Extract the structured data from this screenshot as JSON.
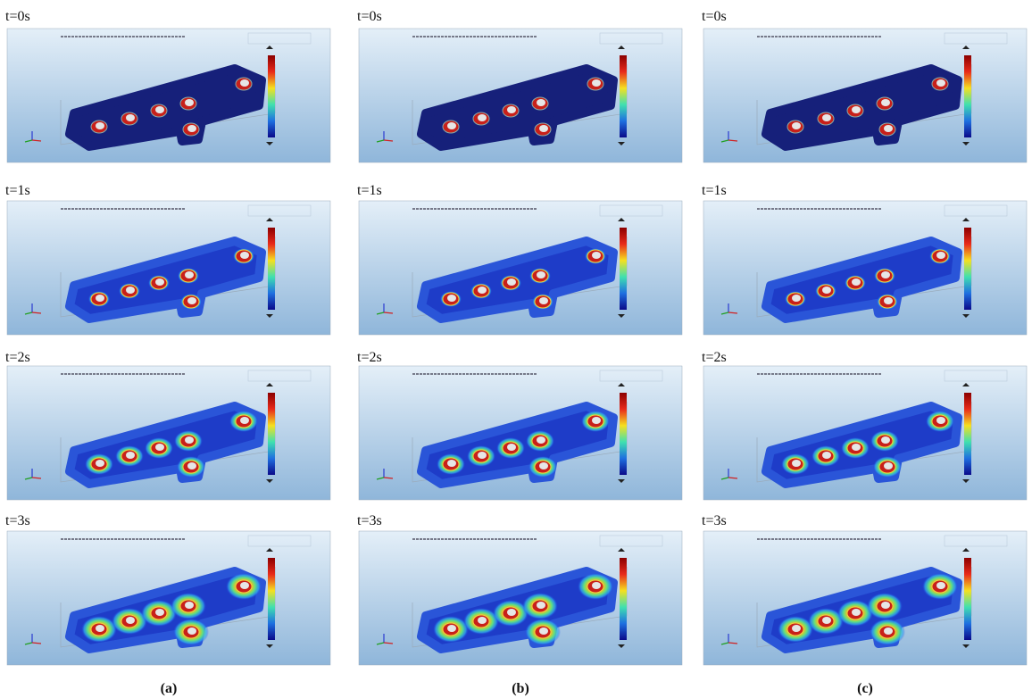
{
  "columns": [
    {
      "label": "(a)",
      "panels": [
        {
          "time": "t=0s"
        },
        {
          "time": "t=1s"
        },
        {
          "time": "t=2s"
        },
        {
          "time": "t=3s"
        }
      ]
    },
    {
      "label": "(b)",
      "panels": [
        {
          "time": "t=0s"
        },
        {
          "time": "t=1s"
        },
        {
          "time": "t=2s"
        },
        {
          "time": "t=3s"
        }
      ]
    },
    {
      "label": "(c)",
      "panels": [
        {
          "time": "t=0s"
        },
        {
          "time": "t=1s"
        },
        {
          "time": "t=2s"
        },
        {
          "time": "t=3s"
        }
      ]
    }
  ]
}
